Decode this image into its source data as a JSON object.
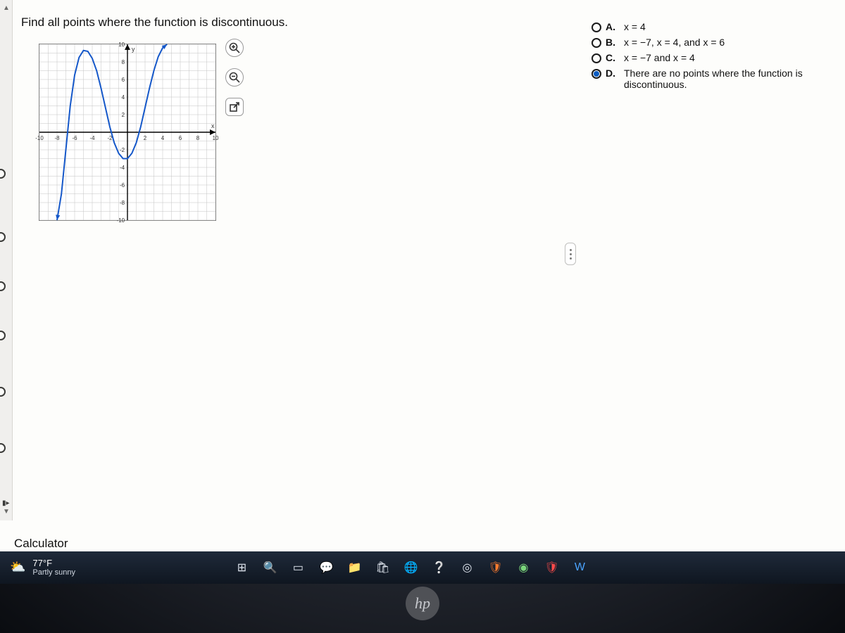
{
  "question": "Find all points where the function is discontinuous.",
  "choices": [
    {
      "letter": "A.",
      "text": "x = 4",
      "selected": false
    },
    {
      "letter": "B.",
      "text": "x = −7, x = 4, and x = 6",
      "selected": false
    },
    {
      "letter": "C.",
      "text": "x = −7 and x = 4",
      "selected": false
    },
    {
      "letter": "D.",
      "text": "There are no points where the function is discontinuous.",
      "selected": true
    }
  ],
  "graph": {
    "xmin": -10,
    "xmax": 10,
    "ymin": -10,
    "ymax": 10,
    "x_ticks": [
      -10,
      -8,
      -6,
      -4,
      -2,
      2,
      4,
      6,
      8,
      10
    ],
    "y_ticks": [
      -10,
      -8,
      -6,
      -4,
      -2,
      2,
      4,
      6,
      8,
      10
    ],
    "x_label": "x",
    "y_label": "y",
    "grid_color": "#c2c2c2",
    "axis_color": "#000000",
    "curve_color": "#1457c9",
    "curve_width": 2,
    "arrow_color": "#1457c9",
    "curve_points": [
      [
        -8,
        -10
      ],
      [
        -7.5,
        -7
      ],
      [
        -7,
        -2
      ],
      [
        -6.5,
        3
      ],
      [
        -6,
        6.5
      ],
      [
        -5.5,
        8.5
      ],
      [
        -5,
        9.3
      ],
      [
        -4.5,
        9.2
      ],
      [
        -4,
        8.4
      ],
      [
        -3.5,
        7.0
      ],
      [
        -3,
        5.0
      ],
      [
        -2.5,
        2.8
      ],
      [
        -2,
        0.6
      ],
      [
        -1.5,
        -1.2
      ],
      [
        -1,
        -2.4
      ],
      [
        -0.5,
        -3.0
      ],
      [
        0,
        -3.0
      ],
      [
        0.5,
        -2.4
      ],
      [
        1,
        -1.2
      ],
      [
        1.5,
        0.6
      ],
      [
        2,
        2.8
      ],
      [
        2.5,
        5.0
      ],
      [
        3,
        7.0
      ],
      [
        3.5,
        8.6
      ],
      [
        4,
        9.6
      ],
      [
        4.5,
        10
      ]
    ]
  },
  "zoom_buttons": {
    "in": "+",
    "out": "−",
    "popout": "↗"
  },
  "left_nav": {
    "bubble_tops": [
      240,
      330,
      400,
      470,
      550,
      630
    ],
    "expand_label": "▮▸"
  },
  "calculator_label": "Calculator",
  "taskbar": {
    "weather_icon": "⛅",
    "temp": "77°F",
    "condition": "Partly sunny",
    "items": [
      {
        "name": "start",
        "glyph": "⊞",
        "color": ""
      },
      {
        "name": "search",
        "glyph": "🔍",
        "color": ""
      },
      {
        "name": "task-view",
        "glyph": "▭",
        "color": ""
      },
      {
        "name": "chat",
        "glyph": "💬",
        "color": "col-blue"
      },
      {
        "name": "explorer",
        "glyph": "📁",
        "color": "col-yel"
      },
      {
        "name": "store",
        "glyph": "🛍",
        "color": ""
      },
      {
        "name": "edge",
        "glyph": "🌐",
        "color": "col-blue"
      },
      {
        "name": "help",
        "glyph": "❔",
        "color": "col-blue"
      },
      {
        "name": "hp",
        "glyph": "◎",
        "color": ""
      },
      {
        "name": "brave",
        "glyph": "🛡",
        "color": "col-orn"
      },
      {
        "name": "chrome",
        "glyph": "◉",
        "color": "col-grn"
      },
      {
        "name": "brave2",
        "glyph": "🛡",
        "color": "col-red"
      },
      {
        "name": "word",
        "glyph": "W",
        "color": "col-blue"
      }
    ]
  },
  "hp_label": "hp"
}
